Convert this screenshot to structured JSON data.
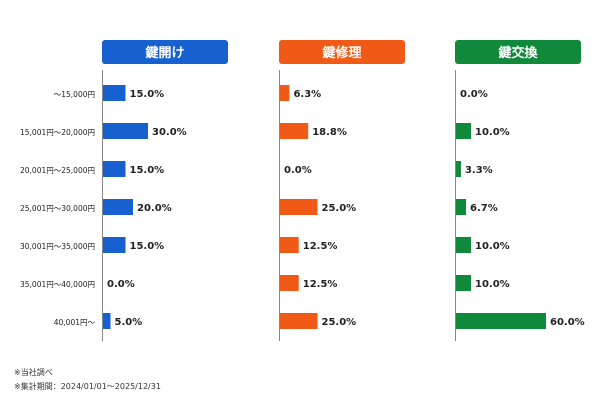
{
  "chart_data": {
    "type": "bar",
    "orientation": "horizontal",
    "categories": [
      "～15,000円",
      "15,001円～20,000円",
      "20,001円～25,000円",
      "25,001円～30,000円",
      "30,001円～35,000円",
      "35,001円～40,000円",
      "40,001円～"
    ],
    "series": [
      {
        "name": "鍵開け",
        "color": "#1660d0",
        "values": [
          15.0,
          30.0,
          15.0,
          20.0,
          15.0,
          0.0,
          5.0
        ],
        "labels": [
          "15.0%",
          "30.0%",
          "15.0%",
          "20.0%",
          "15.0%",
          "0.0%",
          "5.0%"
        ]
      },
      {
        "name": "鍵修理",
        "color": "#f15a16",
        "values": [
          6.3,
          18.8,
          0.0,
          25.0,
          12.5,
          12.5,
          25.0
        ],
        "labels": [
          "6.3%",
          "18.8%",
          "0.0%",
          "25.0%",
          "12.5%",
          "12.5%",
          "25.0%"
        ]
      },
      {
        "name": "鍵交換",
        "color": "#11893a",
        "values": [
          0.0,
          10.0,
          3.3,
          6.7,
          10.0,
          10.0,
          60.0
        ],
        "labels": [
          "0.0%",
          "10.0%",
          "3.3%",
          "6.7%",
          "10.0%",
          "10.0%",
          "60.0%"
        ]
      }
    ],
    "unit": "%",
    "grid": false,
    "legend": "panel headers"
  },
  "notes": [
    "※当社調べ",
    "※集計期間：2024/01/01～2025/12/31"
  ]
}
